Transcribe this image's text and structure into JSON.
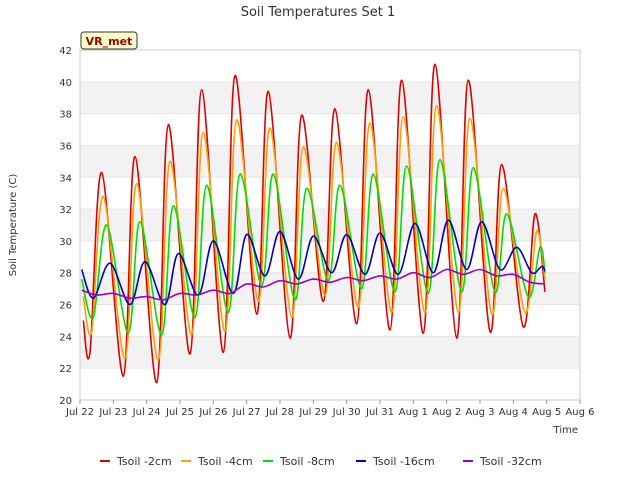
{
  "chart_data": {
    "type": "line",
    "title": "Soil Temperatures Set 1",
    "xlabel": "Time",
    "ylabel": "Soil Temperature (C)",
    "station_label": "VR_met",
    "ylim": [
      20,
      42
    ],
    "yticks": [
      20,
      22,
      24,
      26,
      28,
      30,
      32,
      34,
      36,
      38,
      40,
      42
    ],
    "xlim": [
      0,
      15
    ],
    "xticks": [
      {
        "x": 0,
        "label": "Jul 22"
      },
      {
        "x": 1,
        "label": "Jul 23"
      },
      {
        "x": 2,
        "label": "Jul 24"
      },
      {
        "x": 3,
        "label": "Jul 25"
      },
      {
        "x": 4,
        "label": "Jul 26"
      },
      {
        "x": 5,
        "label": "Jul 27"
      },
      {
        "x": 6,
        "label": "Jul 28"
      },
      {
        "x": 7,
        "label": "Jul 29"
      },
      {
        "x": 8,
        "label": "Jul 30"
      },
      {
        "x": 9,
        "label": "Jul 31"
      },
      {
        "x": 10,
        "label": "Aug 1"
      },
      {
        "x": 11,
        "label": "Aug 2"
      },
      {
        "x": 12,
        "label": "Aug 3"
      },
      {
        "x": 13,
        "label": "Aug 4"
      },
      {
        "x": 14,
        "label": "Aug 5"
      },
      {
        "x": 15,
        "label": "Aug 6"
      }
    ],
    "grid": "horizontal-bands",
    "legend": "bottom",
    "series": [
      {
        "name": "Tsoil -2cm",
        "color": "#e00000",
        "points": [
          [
            0.1,
            25.0
          ],
          [
            0.3,
            23.0
          ],
          [
            0.65,
            34.3
          ],
          [
            1.3,
            21.5
          ],
          [
            1.65,
            35.3
          ],
          [
            2.3,
            21.1
          ],
          [
            2.65,
            37.3
          ],
          [
            3.3,
            22.9
          ],
          [
            3.65,
            39.5
          ],
          [
            4.3,
            23.0
          ],
          [
            4.65,
            40.4
          ],
          [
            5.3,
            25.4
          ],
          [
            5.65,
            39.4
          ],
          [
            6.3,
            23.9
          ],
          [
            6.65,
            37.9
          ],
          [
            7.3,
            26.2
          ],
          [
            7.65,
            38.3
          ],
          [
            8.3,
            24.8
          ],
          [
            8.65,
            39.5
          ],
          [
            9.3,
            24.4
          ],
          [
            9.65,
            40.1
          ],
          [
            10.3,
            24.2
          ],
          [
            10.65,
            41.1
          ],
          [
            11.3,
            23.9
          ],
          [
            11.65,
            40.1
          ],
          [
            12.3,
            24.3
          ],
          [
            12.65,
            34.8
          ],
          [
            13.3,
            24.6
          ],
          [
            13.65,
            31.7
          ],
          [
            13.95,
            26.8
          ]
        ]
      },
      {
        "name": "Tsoil -4cm",
        "color": "#ff9f00",
        "points": [
          [
            0.1,
            26.5
          ],
          [
            0.35,
            24.3
          ],
          [
            0.7,
            32.8
          ],
          [
            1.35,
            22.6
          ],
          [
            1.7,
            33.6
          ],
          [
            2.35,
            22.5
          ],
          [
            2.7,
            35.0
          ],
          [
            3.35,
            24.1
          ],
          [
            3.7,
            36.8
          ],
          [
            4.35,
            24.3
          ],
          [
            4.7,
            37.6
          ],
          [
            5.35,
            26.2
          ],
          [
            5.7,
            37.1
          ],
          [
            6.35,
            25.2
          ],
          [
            6.7,
            35.9
          ],
          [
            7.35,
            26.6
          ],
          [
            7.7,
            36.2
          ],
          [
            8.35,
            25.8
          ],
          [
            8.7,
            37.4
          ],
          [
            9.35,
            25.5
          ],
          [
            9.7,
            37.8
          ],
          [
            10.35,
            25.5
          ],
          [
            10.7,
            38.5
          ],
          [
            11.35,
            25.5
          ],
          [
            11.7,
            37.7
          ],
          [
            12.35,
            25.4
          ],
          [
            12.7,
            33.3
          ],
          [
            13.35,
            25.5
          ],
          [
            13.7,
            30.6
          ],
          [
            13.95,
            27.6
          ]
        ]
      },
      {
        "name": "Tsoil -8cm",
        "color": "#00e000",
        "points": [
          [
            0.05,
            27.6
          ],
          [
            0.4,
            25.2
          ],
          [
            0.8,
            31.0
          ],
          [
            1.45,
            24.2
          ],
          [
            1.8,
            31.2
          ],
          [
            2.45,
            24.1
          ],
          [
            2.8,
            32.2
          ],
          [
            3.45,
            25.2
          ],
          [
            3.8,
            33.5
          ],
          [
            4.45,
            25.5
          ],
          [
            4.8,
            34.2
          ],
          [
            5.45,
            27.2
          ],
          [
            5.8,
            34.2
          ],
          [
            6.45,
            26.3
          ],
          [
            6.8,
            33.3
          ],
          [
            7.45,
            27.5
          ],
          [
            7.8,
            33.5
          ],
          [
            8.45,
            27.0
          ],
          [
            8.8,
            34.2
          ],
          [
            9.45,
            26.8
          ],
          [
            9.8,
            34.7
          ],
          [
            10.45,
            26.7
          ],
          [
            10.8,
            35.1
          ],
          [
            11.45,
            26.8
          ],
          [
            11.8,
            34.6
          ],
          [
            12.45,
            26.8
          ],
          [
            12.8,
            31.7
          ],
          [
            13.45,
            26.5
          ],
          [
            13.8,
            29.6
          ],
          [
            13.95,
            28.0
          ]
        ]
      },
      {
        "name": "Tsoil -16cm",
        "color": "#0000cc",
        "points": [
          [
            0.05,
            28.2
          ],
          [
            0.4,
            26.4
          ],
          [
            0.9,
            28.6
          ],
          [
            1.5,
            26.0
          ],
          [
            1.95,
            28.7
          ],
          [
            2.55,
            26.0
          ],
          [
            2.95,
            29.2
          ],
          [
            3.55,
            26.6
          ],
          [
            4.0,
            30.0
          ],
          [
            4.6,
            26.7
          ],
          [
            5.0,
            30.4
          ],
          [
            5.55,
            27.8
          ],
          [
            6.0,
            30.6
          ],
          [
            6.55,
            27.6
          ],
          [
            7.0,
            30.3
          ],
          [
            7.55,
            28.0
          ],
          [
            8.0,
            30.4
          ],
          [
            8.55,
            27.9
          ],
          [
            9.0,
            30.5
          ],
          [
            9.55,
            27.9
          ],
          [
            10.05,
            31.1
          ],
          [
            10.6,
            28.0
          ],
          [
            11.05,
            31.3
          ],
          [
            11.6,
            28.2
          ],
          [
            12.05,
            31.2
          ],
          [
            12.6,
            28.2
          ],
          [
            13.1,
            29.6
          ],
          [
            13.55,
            28.0
          ],
          [
            13.85,
            28.4
          ],
          [
            13.95,
            28.1
          ]
        ]
      },
      {
        "name": "Tsoil -32cm",
        "color": "#9900cc",
        "points": [
          [
            0.05,
            26.9
          ],
          [
            0.5,
            26.6
          ],
          [
            1.0,
            26.7
          ],
          [
            1.5,
            26.4
          ],
          [
            2.0,
            26.5
          ],
          [
            2.5,
            26.3
          ],
          [
            3.0,
            26.7
          ],
          [
            3.5,
            26.6
          ],
          [
            4.0,
            26.9
          ],
          [
            4.5,
            26.7
          ],
          [
            5.0,
            27.3
          ],
          [
            5.5,
            27.1
          ],
          [
            6.0,
            27.5
          ],
          [
            6.5,
            27.3
          ],
          [
            7.0,
            27.6
          ],
          [
            7.5,
            27.4
          ],
          [
            8.0,
            27.7
          ],
          [
            8.5,
            27.5
          ],
          [
            9.0,
            27.8
          ],
          [
            9.5,
            27.6
          ],
          [
            10.0,
            28.0
          ],
          [
            10.5,
            27.7
          ],
          [
            11.0,
            28.2
          ],
          [
            11.5,
            27.9
          ],
          [
            12.0,
            28.2
          ],
          [
            12.5,
            27.8
          ],
          [
            13.0,
            27.9
          ],
          [
            13.5,
            27.4
          ],
          [
            13.95,
            27.3
          ]
        ]
      }
    ]
  }
}
